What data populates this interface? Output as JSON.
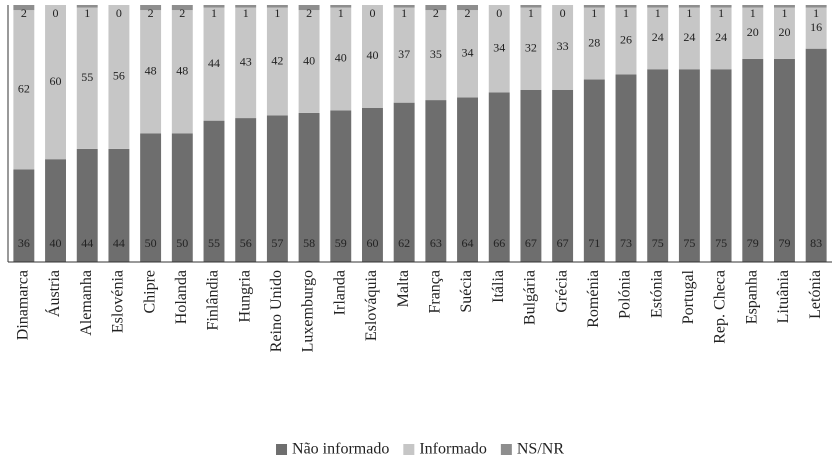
{
  "chart_data": {
    "type": "stacked_bar",
    "categories": [
      "Dinamarca",
      "Áustria",
      "Alemanha",
      "Eslovénia",
      "Chipre",
      "Holanda",
      "Finlândia",
      "Hungria",
      "Reino Unido",
      "Luxemburgo",
      "Irlanda",
      "Eslováquia",
      "Malta",
      "França",
      "Suécia",
      "Itália",
      "Bulgária",
      "Grécia",
      "Roménia",
      "Polónia",
      "Estónia",
      "Portugal",
      "Rep. Checa",
      "Espanha",
      "Lituânia",
      "Letónia"
    ],
    "series": [
      {
        "name": "Não informado",
        "color": "#6e6e6e",
        "values": [
          36,
          40,
          44,
          44,
          50,
          50,
          55,
          56,
          57,
          58,
          59,
          60,
          62,
          63,
          64,
          66,
          67,
          67,
          71,
          73,
          75,
          75,
          75,
          79,
          79,
          83
        ]
      },
      {
        "name": "Informado",
        "color": "#c6c6c6",
        "values": [
          62,
          60,
          55,
          56,
          48,
          48,
          44,
          43,
          42,
          40,
          40,
          40,
          37,
          35,
          34,
          34,
          32,
          33,
          28,
          26,
          24,
          24,
          24,
          20,
          20,
          16
        ]
      },
      {
        "name": "NS/NR",
        "color": "#8e8e8e",
        "values": [
          2,
          0,
          1,
          0,
          2,
          2,
          1,
          1,
          1,
          2,
          1,
          0,
          1,
          2,
          2,
          0,
          1,
          0,
          1,
          1,
          1,
          1,
          1,
          1,
          1,
          1
        ]
      }
    ],
    "ylim": [
      0,
      100
    ],
    "legend": "bottom"
  }
}
